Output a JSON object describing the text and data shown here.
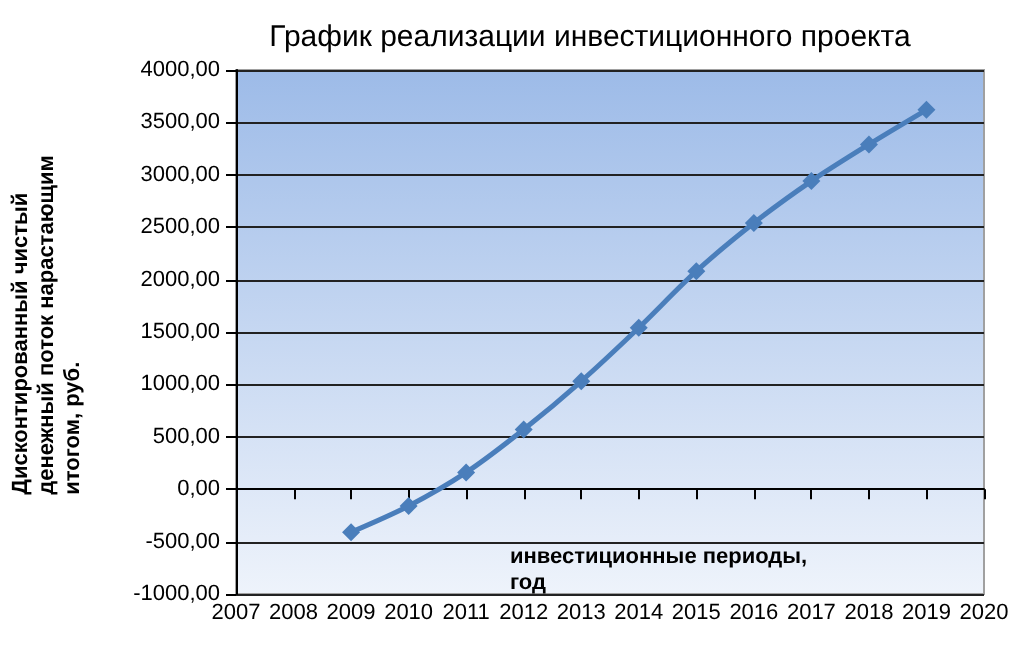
{
  "chart_data": {
    "type": "line",
    "title": "График реализации инвестиционного проекта",
    "xlabel": "инвестиционные периоды, год",
    "ylabel": "Дисконтированный чистый денежный поток нарастающим итогом, руб.",
    "x": [
      2009,
      2010,
      2011,
      2012,
      2013,
      2014,
      2015,
      2016,
      2017,
      2018,
      2019
    ],
    "series": [
      {
        "color": "#4a7ebb",
        "values": [
          -410,
          -160,
          160,
          570,
          1030,
          1540,
          2080,
          2540,
          2940,
          3290,
          3620
        ]
      }
    ],
    "xlim": [
      2007,
      2020
    ],
    "xticks": [
      2007,
      2008,
      2009,
      2010,
      2011,
      2012,
      2013,
      2014,
      2015,
      2016,
      2017,
      2018,
      2019,
      2020
    ],
    "ylim": [
      -1000,
      4000
    ],
    "yticks": [
      {
        "value": -1000,
        "label": "-1000,00"
      },
      {
        "value": -500,
        "label": "-500,00"
      },
      {
        "value": 0,
        "label": "0,00"
      },
      {
        "value": 500,
        "label": "500,00"
      },
      {
        "value": 1000,
        "label": "1000,00"
      },
      {
        "value": 1500,
        "label": "1500,00"
      },
      {
        "value": 2000,
        "label": "2000,00"
      },
      {
        "value": 2500,
        "label": "2500,00"
      },
      {
        "value": 3000,
        "label": "3000,00"
      },
      {
        "value": 3500,
        "label": "3500,00"
      },
      {
        "value": 4000,
        "label": "4000,00"
      }
    ],
    "grid": "y",
    "marker": "diamond",
    "line_style": "solid"
  }
}
